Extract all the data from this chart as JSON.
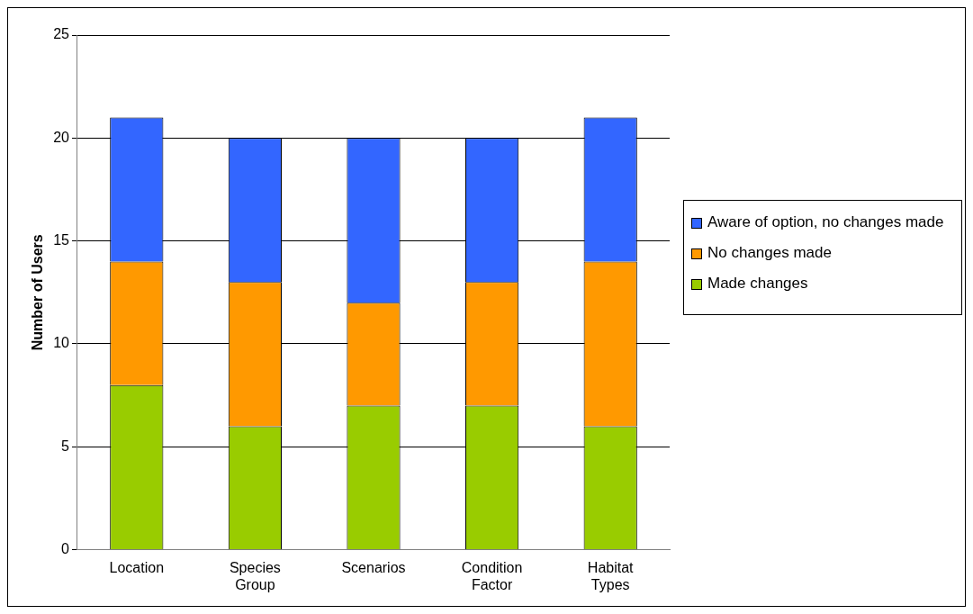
{
  "chart_data": {
    "type": "bar",
    "ylabel": "Number of Users",
    "categories": [
      "Location",
      "Species Group",
      "Scenarios",
      "Condition Factor",
      "Habitat Types"
    ],
    "stacked": true,
    "series": [
      {
        "name": "Made changes",
        "color": "#99cc00",
        "values": [
          8,
          6,
          7,
          7,
          6
        ]
      },
      {
        "name": "No changes made",
        "color": "#ff9900",
        "values": [
          6,
          7,
          5,
          6,
          8
        ]
      },
      {
        "name": "Aware of option, no changes made",
        "color": "#3366ff",
        "values": [
          7,
          7,
          8,
          7,
          7
        ]
      }
    ],
    "ylim": [
      0,
      25
    ],
    "yticks": [
      0,
      5,
      10,
      15,
      20,
      25
    ],
    "grid": "y",
    "legend": "right"
  }
}
